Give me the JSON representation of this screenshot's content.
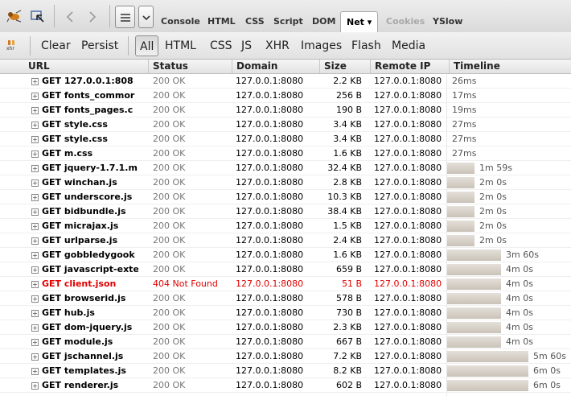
{
  "toolbar": {
    "panel_tabs": [
      {
        "label": "Console",
        "state": "normal"
      },
      {
        "label": "HTML",
        "state": "normal"
      },
      {
        "label": "CSS",
        "state": "normal"
      },
      {
        "label": "Script",
        "state": "normal"
      },
      {
        "label": "DOM",
        "state": "normal"
      },
      {
        "label": "Net ▾",
        "state": "selected"
      },
      {
        "label": "Cookies",
        "state": "disabled"
      },
      {
        "label": "YSlow",
        "state": "normal"
      }
    ],
    "icons": [
      "firebug-icon",
      "inspect-icon",
      "back-arrow-icon",
      "forward-arrow-icon",
      "menu-icon",
      "dropdown-chevron-icon"
    ]
  },
  "filters": {
    "xhr_icon_label": "xhr",
    "clear": "Clear",
    "persist": "Persist",
    "types": [
      "All",
      "HTML",
      "CSS",
      "JS",
      "XHR",
      "Images",
      "Flash",
      "Media"
    ],
    "selected": "All"
  },
  "columns": {
    "url": "URL",
    "status": "Status",
    "domain": "Domain",
    "size": "Size",
    "remote_ip": "Remote IP",
    "timeline": "Timeline"
  },
  "requests": [
    {
      "url": "GET 127.0.0.1:808",
      "status": "200 OK",
      "domain": "127.0.0.1:8080",
      "size": "2.2 KB",
      "remote_ip": "127.0.0.1:8080",
      "time": "26ms",
      "bar": 0,
      "error": false
    },
    {
      "url": "GET fonts_commor",
      "status": "200 OK",
      "domain": "127.0.0.1:8080",
      "size": "256 B",
      "remote_ip": "127.0.0.1:8080",
      "time": "17ms",
      "bar": 0,
      "error": false
    },
    {
      "url": "GET fonts_pages.c",
      "status": "200 OK",
      "domain": "127.0.0.1:8080",
      "size": "190 B",
      "remote_ip": "127.0.0.1:8080",
      "time": "19ms",
      "bar": 0,
      "error": false
    },
    {
      "url": "GET style.css",
      "status": "200 OK",
      "domain": "127.0.0.1:8080",
      "size": "3.4 KB",
      "remote_ip": "127.0.0.1:8080",
      "time": "27ms",
      "bar": 0,
      "error": false
    },
    {
      "url": "GET style.css",
      "status": "200 OK",
      "domain": "127.0.0.1:8080",
      "size": "3.4 KB",
      "remote_ip": "127.0.0.1:8080",
      "time": "27ms",
      "bar": 0,
      "error": false
    },
    {
      "url": "GET m.css",
      "status": "200 OK",
      "domain": "127.0.0.1:8080",
      "size": "1.6 KB",
      "remote_ip": "127.0.0.1:8080",
      "time": "27ms",
      "bar": 0,
      "error": false
    },
    {
      "url": "GET jquery-1.7.1.m",
      "status": "200 OK",
      "domain": "127.0.0.1:8080",
      "size": "32.4 KB",
      "remote_ip": "127.0.0.1:8080",
      "time": "1m 59s",
      "bar": 0.219,
      "error": false
    },
    {
      "url": "GET winchan.js",
      "status": "200 OK",
      "domain": "127.0.0.1:8080",
      "size": "2.8 KB",
      "remote_ip": "127.0.0.1:8080",
      "time": "2m 0s",
      "bar": 0.219,
      "error": false
    },
    {
      "url": "GET underscore.js",
      "status": "200 OK",
      "domain": "127.0.0.1:8080",
      "size": "10.3 KB",
      "remote_ip": "127.0.0.1:8080",
      "time": "2m 0s",
      "bar": 0.219,
      "error": false
    },
    {
      "url": "GET bidbundle.js",
      "status": "200 OK",
      "domain": "127.0.0.1:8080",
      "size": "38.4 KB",
      "remote_ip": "127.0.0.1:8080",
      "time": "2m 0s",
      "bar": 0.219,
      "error": false
    },
    {
      "url": "GET micrajax.js",
      "status": "200 OK",
      "domain": "127.0.0.1:8080",
      "size": "1.5 KB",
      "remote_ip": "127.0.0.1:8080",
      "time": "2m 0s",
      "bar": 0.219,
      "error": false
    },
    {
      "url": "GET urlparse.js",
      "status": "200 OK",
      "domain": "127.0.0.1:8080",
      "size": "2.4 KB",
      "remote_ip": "127.0.0.1:8080",
      "time": "2m 0s",
      "bar": 0.219,
      "error": false
    },
    {
      "url": "GET gobbledygook",
      "status": "200 OK",
      "domain": "127.0.0.1:8080",
      "size": "1.6 KB",
      "remote_ip": "127.0.0.1:8080",
      "time": "3m 60s",
      "bar": 0.438,
      "error": false
    },
    {
      "url": "GET javascript-exte",
      "status": "200 OK",
      "domain": "127.0.0.1:8080",
      "size": "659 B",
      "remote_ip": "127.0.0.1:8080",
      "time": "4m 0s",
      "bar": 0.438,
      "error": false
    },
    {
      "url": "GET client.json",
      "status": "404 Not Found",
      "domain": "127.0.0.1:8080",
      "size": "51 B",
      "remote_ip": "127.0.0.1:8080",
      "time": "4m 0s",
      "bar": 0.438,
      "error": true
    },
    {
      "url": "GET browserid.js",
      "status": "200 OK",
      "domain": "127.0.0.1:8080",
      "size": "578 B",
      "remote_ip": "127.0.0.1:8080",
      "time": "4m 0s",
      "bar": 0.438,
      "error": false
    },
    {
      "url": "GET hub.js",
      "status": "200 OK",
      "domain": "127.0.0.1:8080",
      "size": "730 B",
      "remote_ip": "127.0.0.1:8080",
      "time": "4m 0s",
      "bar": 0.438,
      "error": false
    },
    {
      "url": "GET dom-jquery.js",
      "status": "200 OK",
      "domain": "127.0.0.1:8080",
      "size": "2.3 KB",
      "remote_ip": "127.0.0.1:8080",
      "time": "4m 0s",
      "bar": 0.438,
      "error": false
    },
    {
      "url": "GET module.js",
      "status": "200 OK",
      "domain": "127.0.0.1:8080",
      "size": "667 B",
      "remote_ip": "127.0.0.1:8080",
      "time": "4m 0s",
      "bar": 0.438,
      "error": false
    },
    {
      "url": "GET jschannel.js",
      "status": "200 OK",
      "domain": "127.0.0.1:8080",
      "size": "7.2 KB",
      "remote_ip": "127.0.0.1:8080",
      "time": "5m 60s",
      "bar": 0.657,
      "error": false
    },
    {
      "url": "GET templates.js",
      "status": "200 OK",
      "domain": "127.0.0.1:8080",
      "size": "8.2 KB",
      "remote_ip": "127.0.0.1:8080",
      "time": "6m 0s",
      "bar": 0.657,
      "error": false
    },
    {
      "url": "GET renderer.js",
      "status": "200 OK",
      "domain": "127.0.0.1:8080",
      "size": "602 B",
      "remote_ip": "127.0.0.1:8080",
      "time": "6m 0s",
      "bar": 0.657,
      "error": false
    }
  ]
}
